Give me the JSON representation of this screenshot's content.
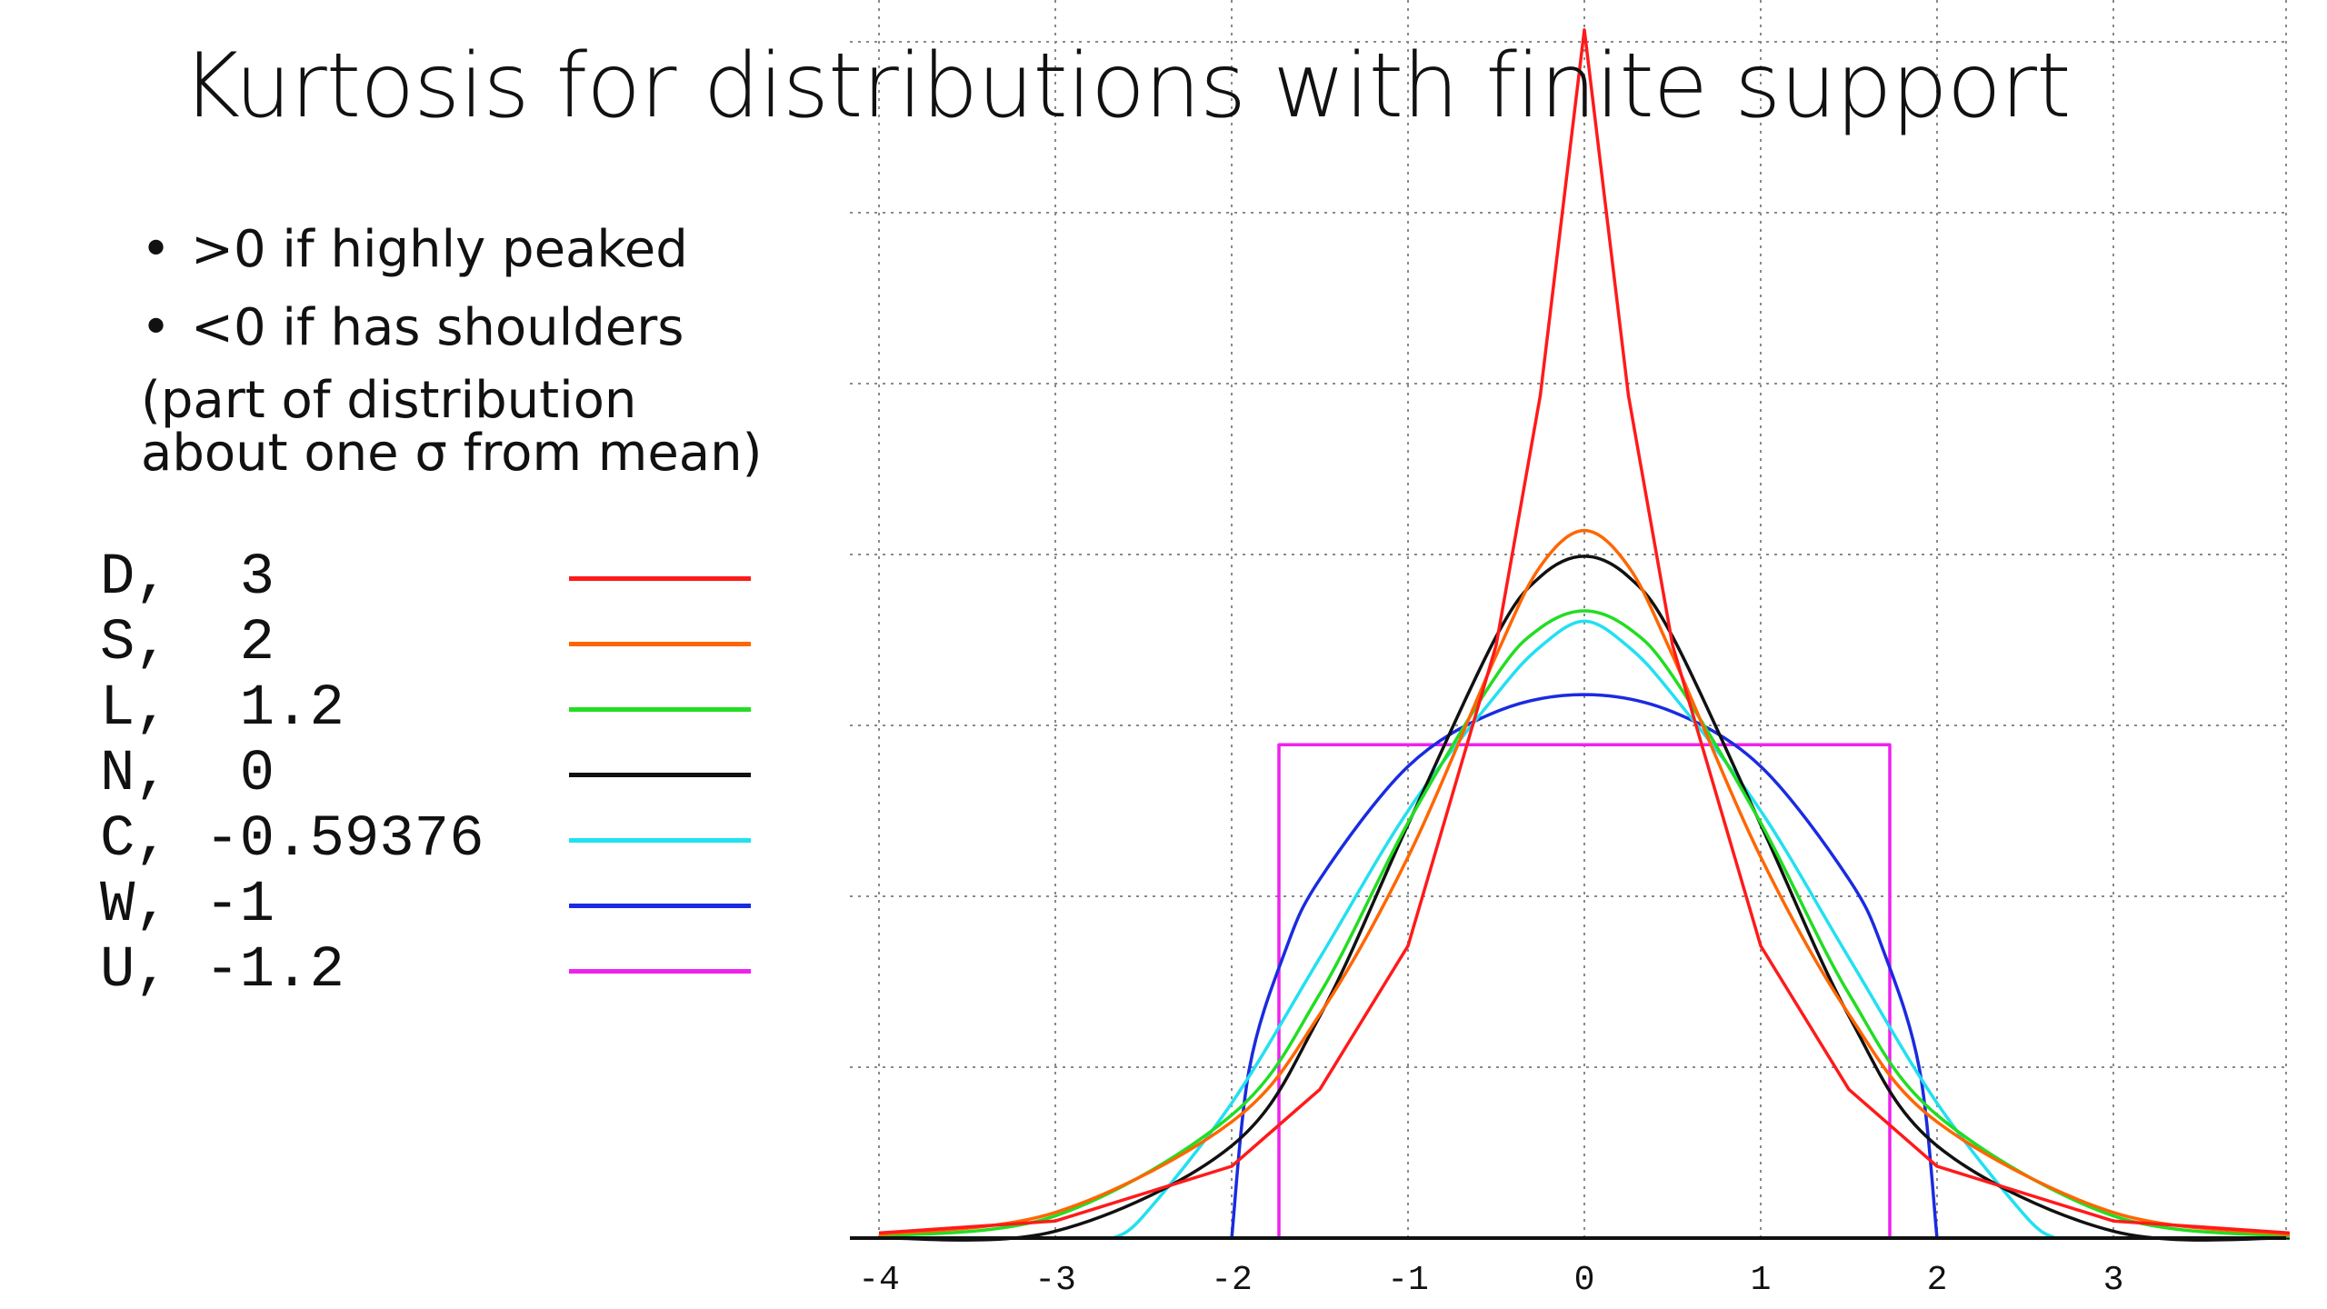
{
  "title": "Kurtosis for distributions with finite support",
  "bullets": [
    ">0 if highly peaked",
    "<0 if has shoulders"
  ],
  "note": [
    "(part of distribution",
    "about one σ from mean)"
  ],
  "legend": [
    {
      "label": "D,  3",
      "color": "#ff1a1a"
    },
    {
      "label": "S,  2",
      "color": "#ff6600"
    },
    {
      "label": "L,  1.2",
      "color": "#22dd22"
    },
    {
      "label": "N,  0",
      "color": "#111111"
    },
    {
      "label": "C, -0.59376",
      "color": "#22e0f0"
    },
    {
      "label": "W, -1",
      "color": "#1a2be0"
    },
    {
      "label": "U, -1.2",
      "color": "#ee22ee"
    }
  ],
  "chart_data": {
    "type": "line",
    "title": "",
    "xlabel": "",
    "ylabel": "",
    "xlim": [
      -4.0,
      4.0
    ],
    "ylim": [
      0,
      0.72
    ],
    "x_ticks": [
      -4,
      -3,
      -2,
      -1,
      0,
      1,
      2,
      3
    ],
    "x_tick_labels": [
      "-4",
      "-3",
      "-2",
      "-1",
      "0",
      "1",
      "2",
      "3"
    ],
    "y_gridlines": [
      0.1,
      0.2,
      0.3,
      0.4,
      0.5,
      0.6,
      0.7
    ],
    "grid": true,
    "series": [
      {
        "name": "D",
        "excess_kurtosis": 3,
        "color": "#ff1a1a",
        "x": [
          -4,
          -3,
          -2,
          -1.5,
          -1,
          -0.5,
          -0.25,
          0,
          0.25,
          0.5,
          1,
          1.5,
          2,
          3,
          4
        ],
        "y": [
          0.003,
          0.01,
          0.042,
          0.087,
          0.171,
          0.347,
          0.493,
          0.707,
          0.493,
          0.347,
          0.171,
          0.087,
          0.042,
          0.01,
          0.003
        ]
      },
      {
        "name": "S",
        "excess_kurtosis": 2,
        "color": "#ff6600",
        "x": [
          -4,
          -3,
          -2,
          -1.5,
          -1,
          -0.5,
          -0.25,
          0,
          0.25,
          0.5,
          1,
          1.5,
          2,
          3,
          4
        ],
        "y": [
          0.002,
          0.015,
          0.068,
          0.131,
          0.223,
          0.341,
          0.393,
          0.414,
          0.393,
          0.341,
          0.223,
          0.131,
          0.068,
          0.015,
          0.002
        ]
      },
      {
        "name": "L",
        "excess_kurtosis": 1.2,
        "color": "#22dd22",
        "x": [
          -4,
          -3,
          -2,
          -1.5,
          -1,
          -0.5,
          -0.25,
          0,
          0.25,
          0.5,
          1,
          1.5,
          2,
          3,
          4
        ],
        "y": [
          0.001,
          0.013,
          0.072,
          0.143,
          0.243,
          0.329,
          0.357,
          0.367,
          0.357,
          0.329,
          0.243,
          0.143,
          0.072,
          0.013,
          0.001
        ]
      },
      {
        "name": "N",
        "excess_kurtosis": 0,
        "color": "#111111",
        "x": [
          -4,
          -3,
          -2,
          -1.5,
          -1,
          -0.5,
          -0.25,
          0,
          0.25,
          0.5,
          1,
          1.5,
          2,
          3,
          4
        ],
        "y": [
          0.0,
          0.004,
          0.054,
          0.13,
          0.242,
          0.352,
          0.387,
          0.399,
          0.387,
          0.352,
          0.242,
          0.13,
          0.054,
          0.004,
          0.0
        ]
      },
      {
        "name": "C",
        "excess_kurtosis": -0.59376,
        "color": "#22e0f0",
        "x": [
          -2.67,
          -2.5,
          -2,
          -1.5,
          -1,
          -0.5,
          -0.25,
          0,
          0.25,
          0.5,
          1,
          1.5,
          2,
          2.5,
          2.67
        ],
        "y": [
          0.0,
          0.013,
          0.079,
          0.164,
          0.25,
          0.318,
          0.346,
          0.361,
          0.346,
          0.318,
          0.25,
          0.164,
          0.079,
          0.013,
          0.0
        ]
      },
      {
        "name": "W",
        "excess_kurtosis": -1,
        "color": "#1a2be0",
        "x": [
          -2.0,
          -1.9,
          -1.7,
          -1.5,
          -1,
          -0.5,
          0,
          0.5,
          1,
          1.5,
          1.7,
          1.9,
          2.0
        ],
        "y": [
          0.0,
          0.099,
          0.167,
          0.21,
          0.276,
          0.308,
          0.318,
          0.308,
          0.276,
          0.21,
          0.167,
          0.099,
          0.0
        ]
      },
      {
        "name": "U",
        "excess_kurtosis": -1.2,
        "color": "#ee22ee",
        "x": [
          -1.732,
          -1.732,
          1.732,
          1.732
        ],
        "y": [
          0.0,
          0.2887,
          0.2887,
          0.0
        ]
      }
    ]
  }
}
